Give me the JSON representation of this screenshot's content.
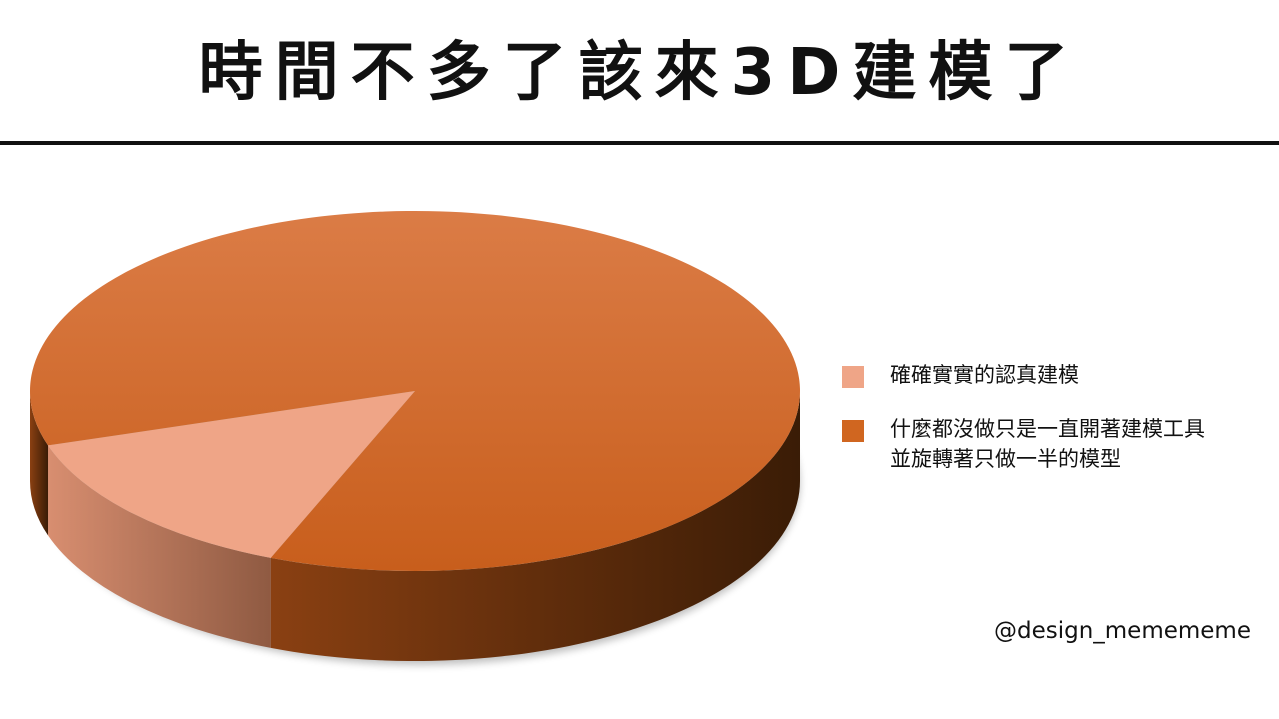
{
  "title": "時間不多了該來3D建模了",
  "credit": "@design_memememe",
  "chart_data": {
    "type": "pie",
    "style": "3d",
    "legend_position": "right",
    "series": [
      {
        "name": "確確實實的認真建模",
        "value": 14,
        "color": "#EFA587"
      },
      {
        "name": "什麼都沒做只是一直開著建模工具\n並旋轉著只做一半的模型",
        "value": 86,
        "color": "#D06620"
      }
    ]
  }
}
